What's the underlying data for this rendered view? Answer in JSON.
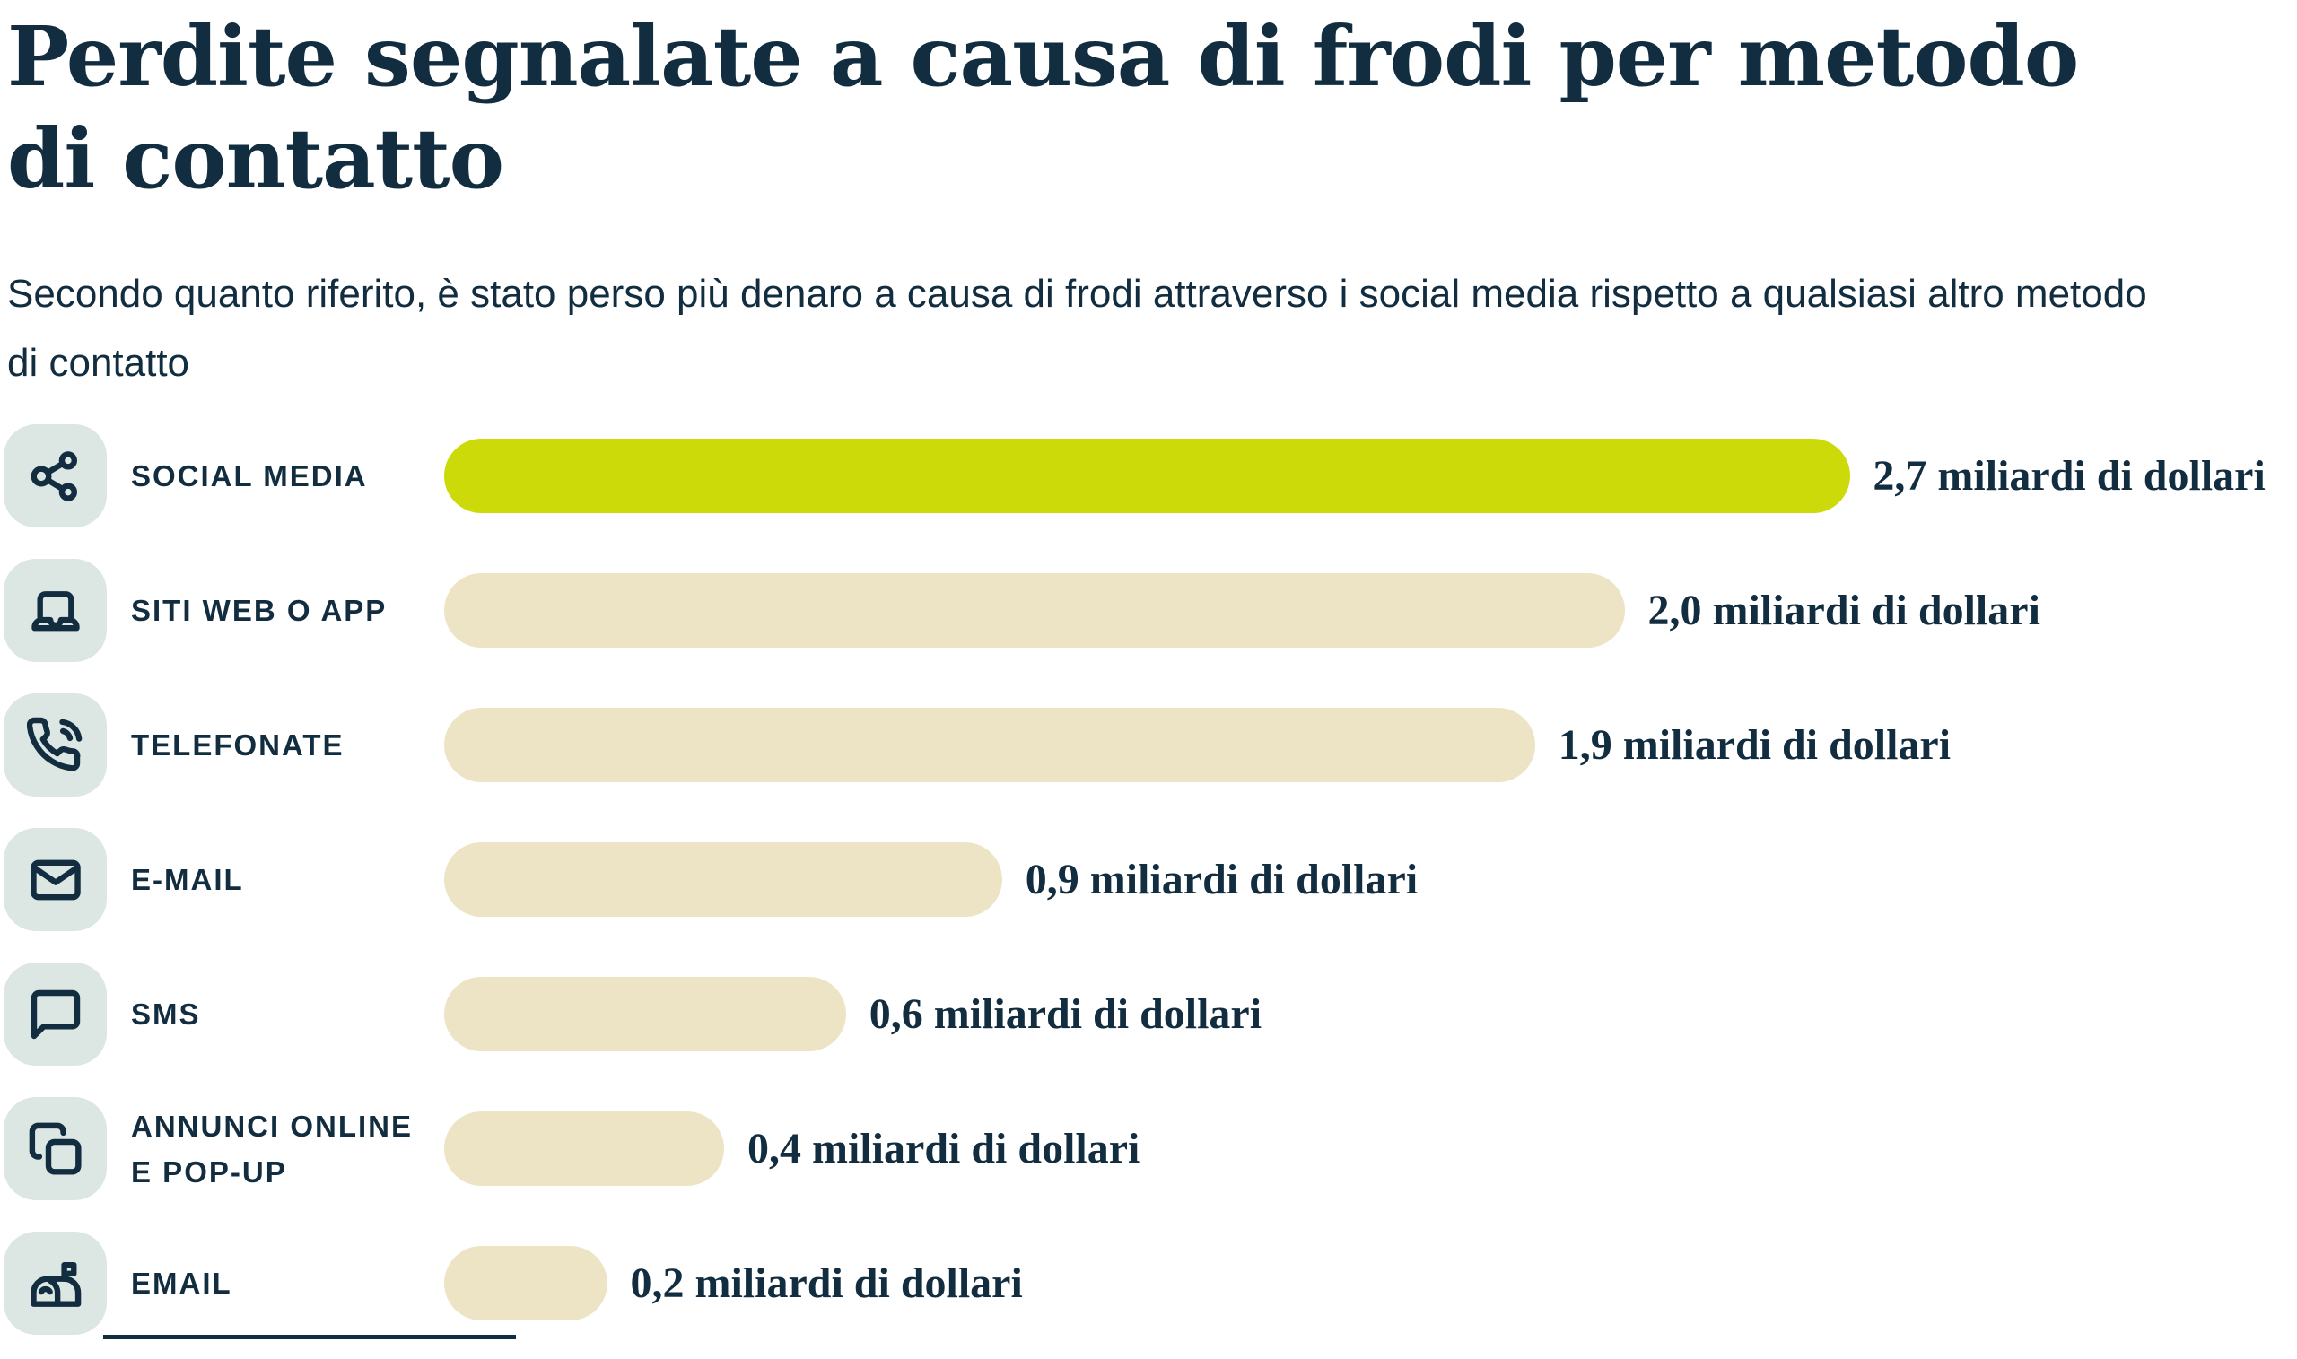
{
  "page": {
    "title_lines": [
      "Perdite segnalate a causa di frodi per metodo",
      "di contatto"
    ],
    "subtitle": "Secondo quanto riferito, è stato perso più denaro a causa di frodi attraverso i social media rispetto a qualsiasi altro metodo di contatto"
  },
  "colors": {
    "navy": "#122d40",
    "accent_green": "#cdda0a",
    "bar_beige": "#ece4c4",
    "icon_bg": "#dce6e3",
    "background": "#ffffff"
  },
  "chart_data": {
    "type": "bar",
    "orientation": "horizontal",
    "title": "Perdite segnalate a causa di frodi per metodo di contatto",
    "subtitle": "Secondo quanto riferito, è stato perso più denaro a causa di frodi attraverso i social media rispetto a qualsiasi altro metodo di contatto",
    "unit": "miliardi di dollari",
    "xlim": [
      0,
      2.7
    ],
    "grid": false,
    "legend": false,
    "bar_start_pct": 19.34,
    "value_label_gap_pct": 1.0,
    "categories": [
      "SOCIAL MEDIA",
      "SITI WEB O APP",
      "TELEFONATE",
      "E-MAIL",
      "SMS",
      "ANNUNCI ONLINE E POP-UP",
      "EMAIL"
    ],
    "values": [
      2.7,
      2.0,
      1.9,
      0.9,
      0.6,
      0.4,
      0.2
    ],
    "rows": [
      {
        "label_lines": [
          "SOCIAL MEDIA"
        ],
        "icon": "share-nodes",
        "value": 2.7,
        "value_label": "2,7 miliardi di dollari",
        "bar_pct": 61.2,
        "highlight": true
      },
      {
        "label_lines": [
          "SITI WEB O APP"
        ],
        "icon": "laptop",
        "value": 2.0,
        "value_label": "2,0 miliardi di dollari",
        "bar_pct": 51.4,
        "highlight": false
      },
      {
        "label_lines": [
          "TELEFONATE"
        ],
        "icon": "phone-call",
        "value": 1.9,
        "value_label": "1,9 miliardi di dollari",
        "bar_pct": 47.5,
        "highlight": false
      },
      {
        "label_lines": [
          "E-MAIL"
        ],
        "icon": "envelope",
        "value": 0.9,
        "value_label": "0,9 miliardi di dollari",
        "bar_pct": 24.3,
        "highlight": false
      },
      {
        "label_lines": [
          "SMS"
        ],
        "icon": "speech-bubble",
        "value": 0.6,
        "value_label": "0,6 miliardi di dollari",
        "bar_pct": 17.5,
        "highlight": false
      },
      {
        "label_lines": [
          "ANNUNCI ONLINE",
          "E POP-UP"
        ],
        "icon": "copy-windows",
        "value": 0.4,
        "value_label": "0,4 miliardi di dollari",
        "bar_pct": 12.2,
        "highlight": false
      },
      {
        "label_lines": [
          "EMAIL"
        ],
        "icon": "mailbox",
        "value": 0.2,
        "value_label": "0,2 miliardi di dollari",
        "bar_pct": 7.1,
        "highlight": false
      }
    ]
  }
}
